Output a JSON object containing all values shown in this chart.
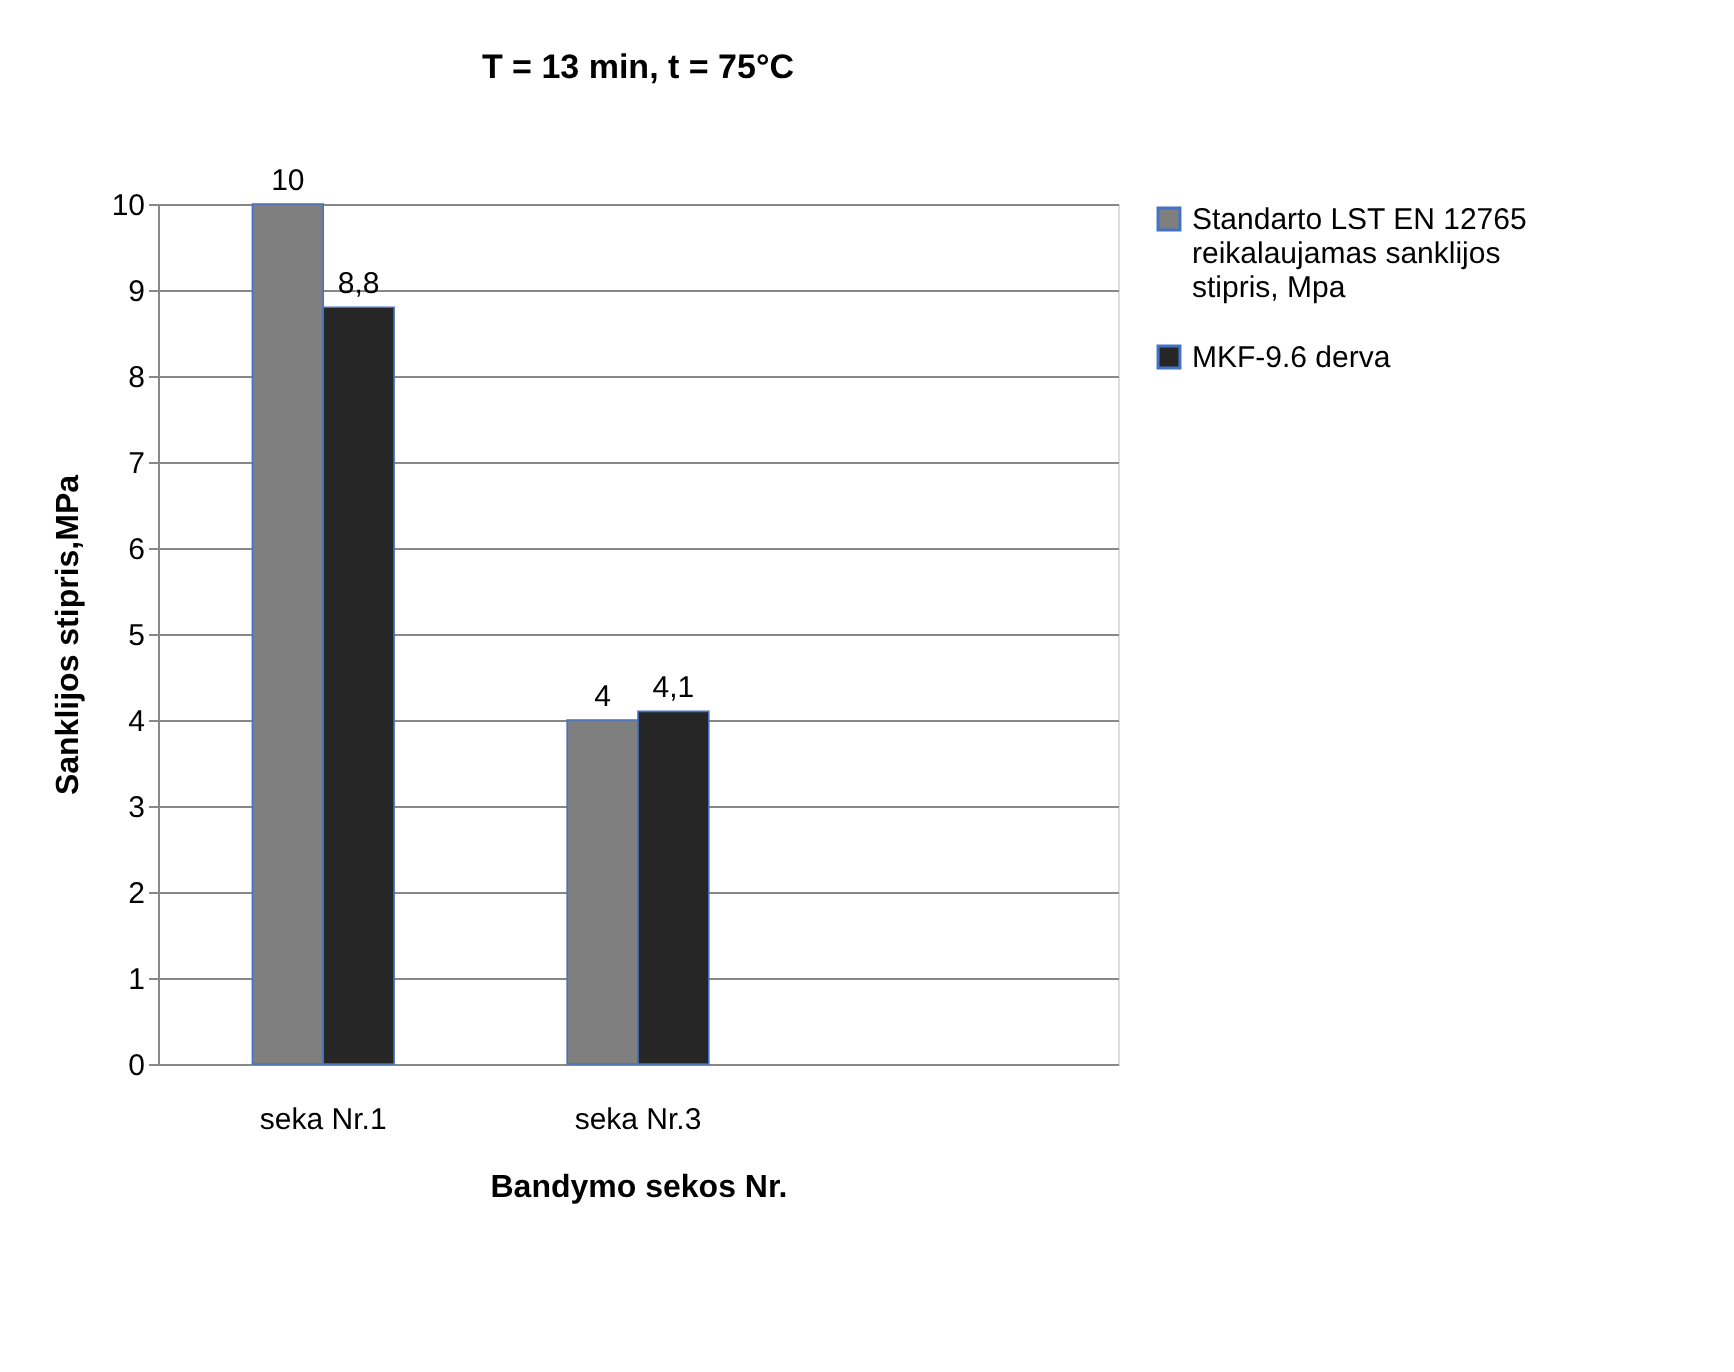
{
  "chart_data": {
    "type": "bar",
    "title": "T = 13 min, t = 75°C",
    "xlabel": "Bandymo sekos Nr.",
    "ylabel": "Sanklijos stipris,MPa",
    "categories": [
      "seka Nr.1",
      "seka Nr.3",
      null
    ],
    "series": [
      {
        "name": "Standarto LST EN 12765 reikalaujamas sanklijos stipris, Mpa",
        "color": "#7f7f7f",
        "values": [
          10,
          4,
          null
        ],
        "value_labels": [
          "10",
          "4",
          null
        ]
      },
      {
        "name": "MKF-9.6 derva",
        "color": "#262626",
        "values": [
          8.8,
          4.1,
          null
        ],
        "value_labels": [
          "8,8",
          "4,1",
          null
        ]
      }
    ],
    "ylim": [
      0,
      10
    ],
    "yticks": [
      0,
      1,
      2,
      3,
      4,
      5,
      6,
      7,
      8,
      9,
      10
    ],
    "grid": "y",
    "legend": "right"
  }
}
